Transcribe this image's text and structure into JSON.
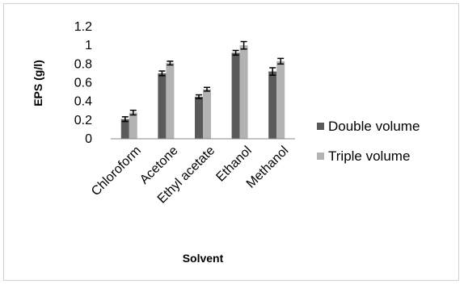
{
  "chart_data": {
    "type": "bar",
    "categories": [
      "Chloroform",
      "Acetone",
      "Ethyl acetate",
      "Ethanol",
      "Methanol"
    ],
    "series": [
      {
        "name": "Double volume",
        "values": [
          0.21,
          0.7,
          0.45,
          0.92,
          0.72
        ],
        "errors": [
          0.025,
          0.025,
          0.02,
          0.025,
          0.04
        ],
        "color": "#5a5a5a"
      },
      {
        "name": "Triple volume",
        "values": [
          0.28,
          0.81,
          0.53,
          1.0,
          0.83
        ],
        "errors": [
          0.025,
          0.02,
          0.02,
          0.04,
          0.03
        ],
        "color": "#b3b3b3"
      }
    ],
    "xlabel": "Solvent",
    "ylabel": "EPS (g/l)",
    "ylim": [
      0,
      1.2
    ],
    "yticks": [
      "0",
      "0.2",
      "0.4",
      "0.6",
      "0.8",
      "1",
      "1.2"
    ],
    "grid": false,
    "legend_position": "right"
  }
}
